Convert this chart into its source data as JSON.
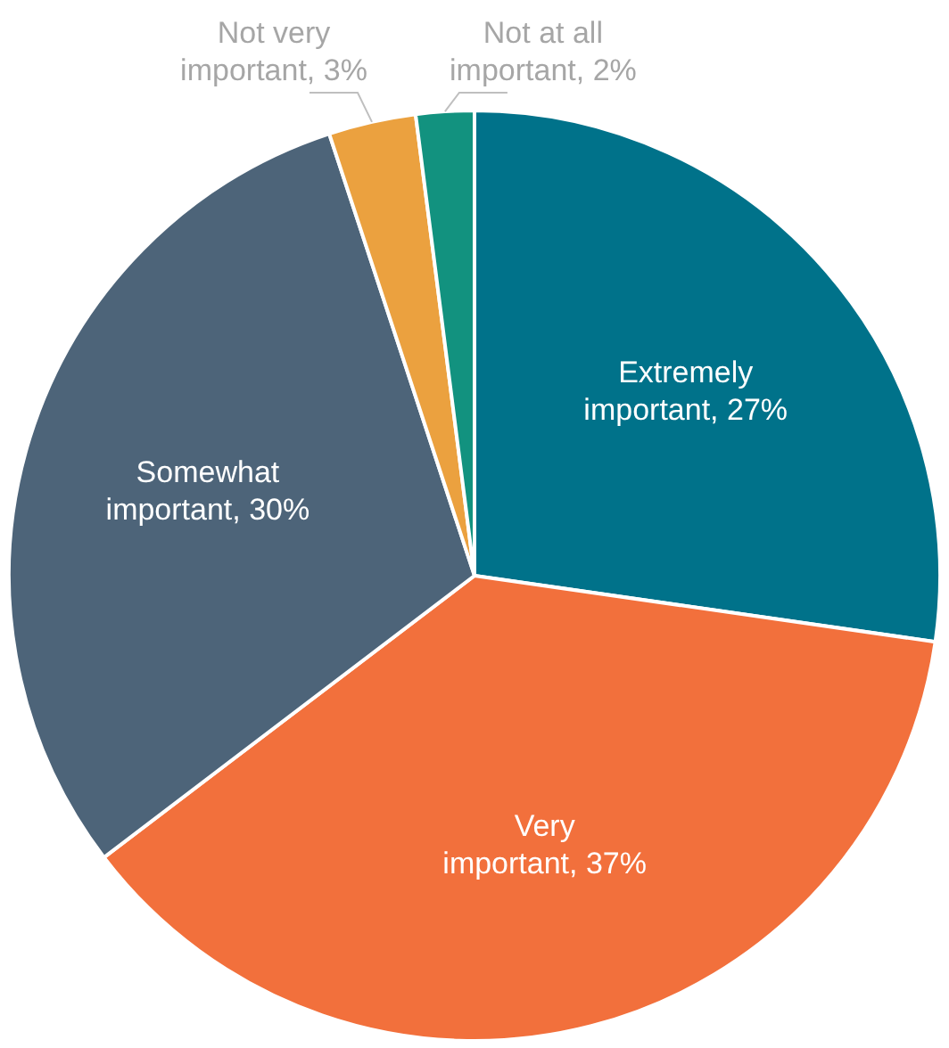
{
  "chart_data": {
    "type": "pie",
    "categories": [
      "Extremely important",
      "Very important",
      "Somewhat important",
      "Not very important",
      "Not at all important"
    ],
    "values": [
      27,
      37,
      30,
      3,
      2
    ],
    "colors": [
      "#00728a",
      "#f2703c",
      "#4d6479",
      "#eba13f",
      "#12927f"
    ],
    "value_labels": [
      "27%",
      "37%",
      "30%",
      "3%",
      "2%"
    ],
    "legend": false
  }
}
